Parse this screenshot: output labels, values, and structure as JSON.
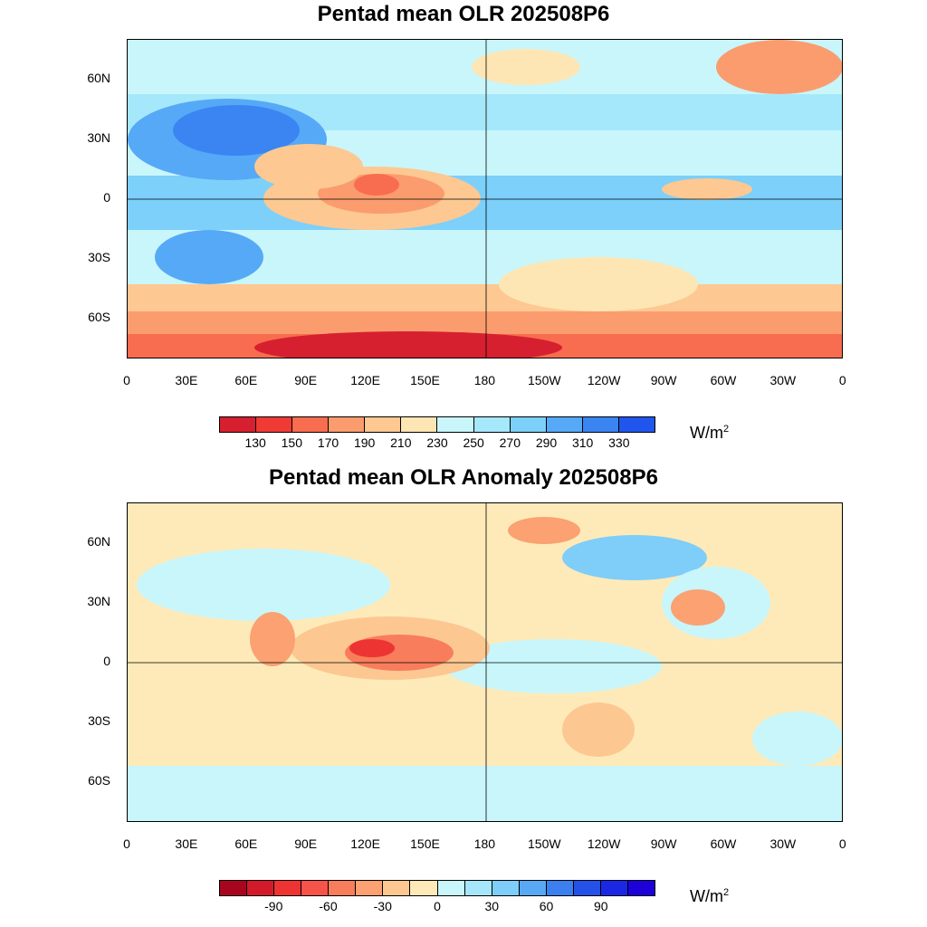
{
  "panel1": {
    "title": "Pentad mean OLR 202508P6",
    "y_labels": [
      "60N",
      "30N",
      "0",
      "30S",
      "60S"
    ],
    "x_labels": [
      "0",
      "30E",
      "60E",
      "90E",
      "120E",
      "150E",
      "180",
      "150W",
      "120W",
      "90W",
      "60W",
      "30W",
      "0"
    ],
    "colorbar": {
      "labels": [
        "130",
        "150",
        "170",
        "190",
        "210",
        "230",
        "250",
        "270",
        "290",
        "310",
        "330"
      ],
      "colors": [
        "#d62030",
        "#f03a35",
        "#f86c4f",
        "#fb9c6e",
        "#fdc892",
        "#fde6b4",
        "#c8f6fb",
        "#a6e8fb",
        "#7cd0fa",
        "#56a9f6",
        "#3a85f2",
        "#2156ee"
      ]
    },
    "unit": "W/m",
    "unit_sup": "2"
  },
  "panel2": {
    "title": "Pentad mean OLR Anomaly 202508P6",
    "y_labels": [
      "60N",
      "30N",
      "0",
      "30S",
      "60S"
    ],
    "x_labels": [
      "0",
      "30E",
      "60E",
      "90E",
      "120E",
      "150E",
      "180",
      "150W",
      "120W",
      "90W",
      "60W",
      "30W",
      "0"
    ],
    "colorbar": {
      "labels": [
        "-90",
        "-60",
        "-30",
        "0",
        "30",
        "60",
        "90"
      ],
      "colors": [
        "#a8061f",
        "#d21a2a",
        "#ee3333",
        "#f6534a",
        "#f87d5c",
        "#fba172",
        "#fdc791",
        "#feeab9",
        "#c8f6fb",
        "#a5e6fb",
        "#7fcdf9",
        "#58a8f4",
        "#3c80f0",
        "#2452e8",
        "#1a28e6",
        "#1e00d8"
      ]
    },
    "unit": "W/m",
    "unit_sup": "2"
  }
}
